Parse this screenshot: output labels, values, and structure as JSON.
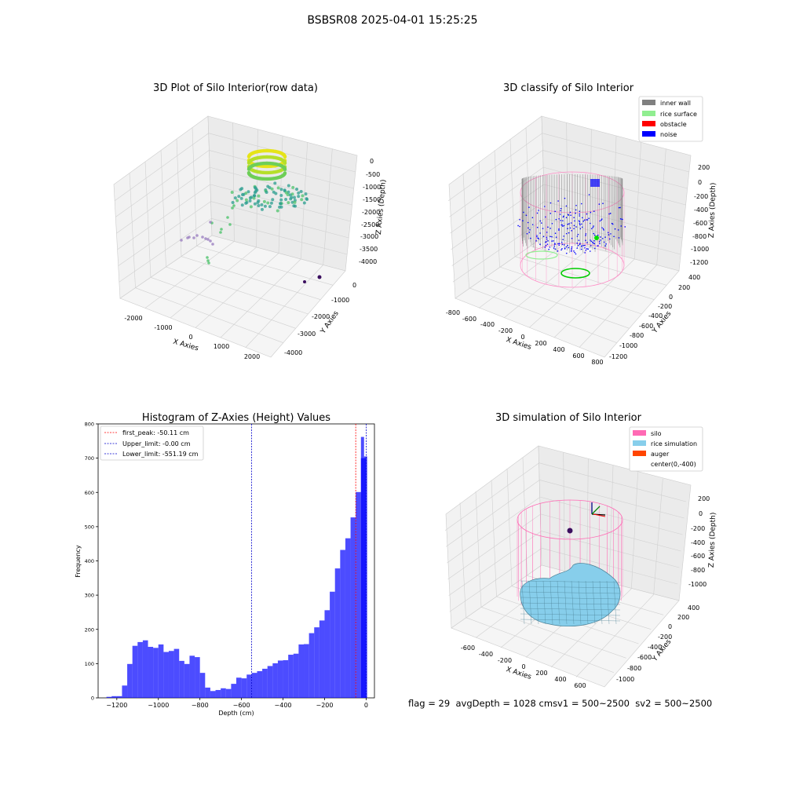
{
  "figure": {
    "suptitle": "BSBSR08 2025-04-01 15:25:25",
    "status": {
      "flag": "flag = 29",
      "avgDepth": "avgDepth = 1028 cm",
      "sv1": "sv1 = 500~2500",
      "sv2": "sv2 = 500~2500"
    }
  },
  "panels": {
    "raw": {
      "title": "3D Plot of Silo Interior(row data)",
      "xlabel": "X Axies",
      "ylabel": "Y Axies",
      "zlabel": "Z Axies (Depth)",
      "xticks": [
        "-2000",
        "-1000",
        "0",
        "1000",
        "2000"
      ],
      "yticks": [
        "0",
        "-1000",
        "-2000",
        "-3000",
        "-4000"
      ],
      "zticks": [
        "0",
        "-500",
        "-1000",
        "-1500",
        "-2000",
        "-2500",
        "-3000",
        "-3500",
        "-4000"
      ],
      "colors": {
        "top": "#e6e419",
        "mid": "#2a9d8f",
        "low": "#1f8f86",
        "green": "#4dc36b",
        "purple": "#9b80c0",
        "dark": "#3b0f5f"
      }
    },
    "classify": {
      "title": "3D classify of Silo Interior",
      "xlabel": "X Axies",
      "ylabel": "Y Axies",
      "zlabel": "Z Axies (Depth)",
      "xticks": [
        "-800",
        "-600",
        "-400",
        "-200",
        "0",
        "200",
        "400",
        "600",
        "800"
      ],
      "yticks": [
        "400",
        "200",
        "0",
        "-200",
        "-400",
        "-600",
        "-800",
        "-1000",
        "-1200"
      ],
      "zticks": [
        "200",
        "0",
        "-200",
        "-400",
        "-600",
        "-800",
        "-1000",
        "-1200"
      ],
      "legend": [
        {
          "label": "inner wall",
          "color": "#808080"
        },
        {
          "label": "rice surface",
          "color": "#90ee90"
        },
        {
          "label": "obstacle",
          "color": "#ff0000"
        },
        {
          "label": "noise",
          "color": "#0000ff"
        }
      ]
    },
    "histogram": {
      "title": "Histogram of Z-Axies (Height) Values",
      "xlabel": "Depth (cm)",
      "ylabel": "Frequency",
      "legend": [
        {
          "label": "first_peak: -50.11 cm",
          "color": "#ff0000"
        },
        {
          "label": "Upper_limit: -0.00 cm",
          "color": "#0000cc"
        },
        {
          "label": "Lower_limit: -551.19 cm",
          "color": "#0000cc"
        }
      ]
    },
    "simulation": {
      "title": "3D simulation of Silo Interior",
      "xlabel": "X Axies",
      "ylabel": "Y Axies",
      "zlabel": "Z Axies (Depth)",
      "xticks": [
        "-600",
        "-400",
        "-200",
        "0",
        "200",
        "400",
        "600"
      ],
      "yticks": [
        "400",
        "200",
        "0",
        "-200",
        "-400",
        "-600",
        "-800",
        "-1000"
      ],
      "zticks": [
        "200",
        "0",
        "-200",
        "-400",
        "-600",
        "-800",
        "-1000"
      ],
      "legend": [
        {
          "label": "silo",
          "color": "#ff69b4"
        },
        {
          "label": "rice simulation",
          "color": "#87ceeb"
        },
        {
          "label": "auger",
          "color": "#ff4500"
        },
        {
          "label": "center(0,-400)",
          "color": "none"
        }
      ]
    }
  },
  "chart_data": {
    "type": "bar",
    "title": "Histogram of Z-Axies (Height) Values",
    "xlabel": "Depth (cm)",
    "ylabel": "Frequency",
    "xlim": [
      -1290,
      40
    ],
    "ylim": [
      0,
      800
    ],
    "xticks": [
      -1200,
      -1000,
      -800,
      -600,
      -400,
      -200,
      0
    ],
    "yticks": [
      0,
      100,
      200,
      300,
      400,
      500,
      600,
      700,
      800
    ],
    "bin_width": 25,
    "bin_starts": [
      -1250,
      -1225,
      -1200,
      -1175,
      -1150,
      -1125,
      -1100,
      -1075,
      -1050,
      -1025,
      -1000,
      -975,
      -950,
      -925,
      -900,
      -875,
      -850,
      -825,
      -800,
      -775,
      -750,
      -725,
      -700,
      -675,
      -650,
      -625,
      -600,
      -575,
      -550,
      -525,
      -500,
      -475,
      -450,
      -425,
      -400,
      -375,
      -350,
      -325,
      -300,
      -275,
      -250,
      -225,
      -200,
      -175,
      -150,
      -125,
      -100,
      -75,
      -50,
      -25
    ],
    "values": [
      3,
      5,
      5,
      36,
      99,
      152,
      163,
      168,
      149,
      146,
      156,
      134,
      137,
      143,
      108,
      99,
      123,
      119,
      73,
      30,
      20,
      23,
      28,
      26,
      41,
      59,
      57,
      68,
      73,
      78,
      85,
      93,
      101,
      109,
      110,
      126,
      129,
      156,
      157,
      189,
      206,
      226,
      256,
      310,
      378,
      432,
      466,
      527,
      601,
      700
    ],
    "tail_bins": [
      {
        "start": -25,
        "value": 762
      },
      {
        "start": -10,
        "value": 705
      }
    ],
    "bar_color": "#0000ff",
    "bar_opacity": 0.7,
    "lines": [
      {
        "name": "first_peak",
        "x": -50.11,
        "color": "#ff0000"
      },
      {
        "name": "Upper_limit",
        "x": -0.0,
        "color": "#0000cc"
      },
      {
        "name": "Lower_limit",
        "x": -551.19,
        "color": "#0000cc"
      }
    ],
    "legend_position": "upper-left"
  }
}
